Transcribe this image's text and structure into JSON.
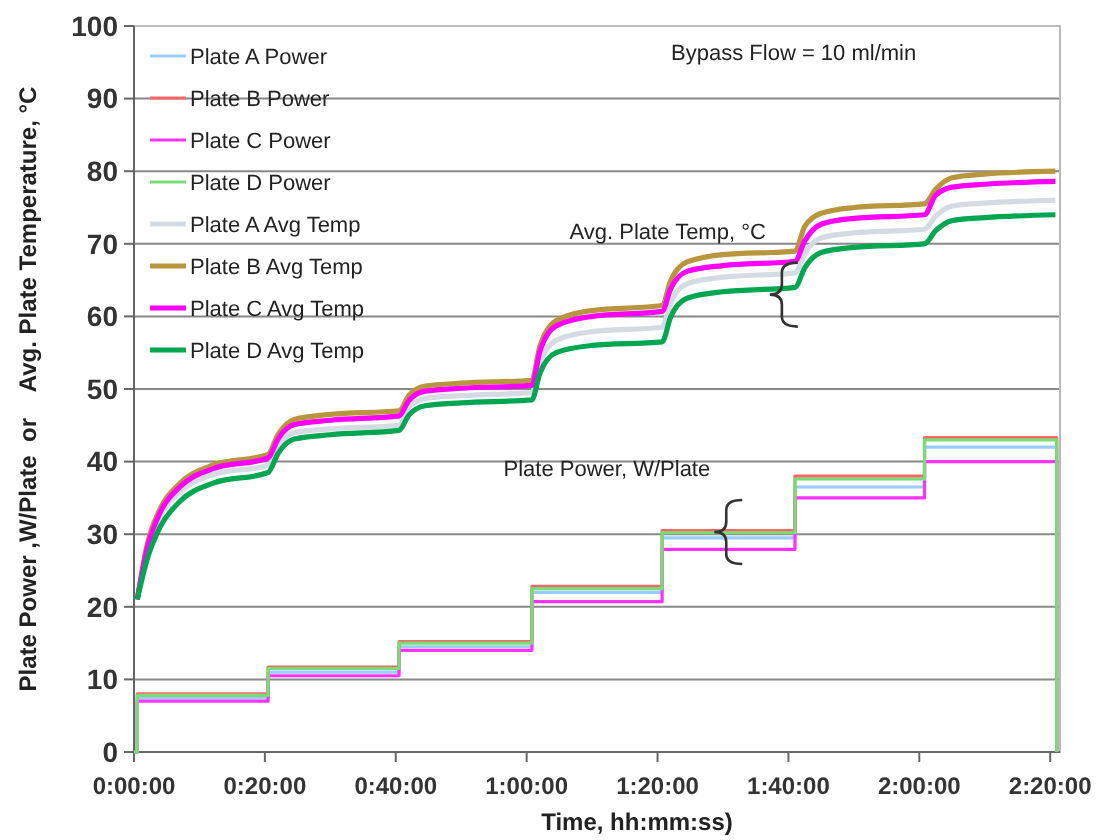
{
  "chart_data": {
    "type": "line",
    "xlabel": "Time, hh:mm:ss)",
    "ylabel": "Plate Power ,W/Plate  or    Avg. Plate Temperature, °C",
    "annotations": [
      "Bypass Flow = 10 ml/min",
      {
        "text": "Avg. Plate Temp, °C",
        "x": 99,
        "y": 63
      },
      {
        "text": "Plate Power,  W/Plate",
        "x": 90.5,
        "y": 30.3
      }
    ],
    "xlim": [
      0,
      141.5
    ],
    "ylim": [
      0,
      100
    ],
    "xticks": [
      {
        "value": 0,
        "label": "0:00:00"
      },
      {
        "value": 20,
        "label": "0:20:00"
      },
      {
        "value": 40,
        "label": "0:40:00"
      },
      {
        "value": 60,
        "label": "1:00:00"
      },
      {
        "value": 80,
        "label": "1:20:00"
      },
      {
        "value": 100,
        "label": "1:40:00"
      },
      {
        "value": 120,
        "label": "2:00:00"
      },
      {
        "value": 140,
        "label": "2:20:00"
      }
    ],
    "yticks": [
      0,
      10,
      20,
      30,
      40,
      50,
      60,
      70,
      80,
      90,
      100
    ],
    "grid": "y",
    "legend": "top left",
    "marker": "none",
    "line_style": "solid",
    "x": [
      0.5,
      2,
      4,
      7,
      12,
      20.5,
      22,
      24.5,
      30,
      40.5,
      42,
      44.5,
      50,
      60.8,
      62,
      64.5,
      70,
      80.7,
      82,
      84.5,
      90,
      101,
      102.5,
      105,
      110,
      120.8,
      122.5,
      125,
      130,
      140.8
    ],
    "series": [
      {
        "name": "Plate A Power",
        "type": "step",
        "color": "#99ccff",
        "x": [
          0,
          0.5,
          20.5,
          40.5,
          60.8,
          80.7,
          101,
          120.8,
          141
        ],
        "values": [
          0,
          7.5,
          11,
          14.5,
          22,
          29.5,
          36.5,
          42,
          0
        ]
      },
      {
        "name": "Plate B Power",
        "type": "step",
        "color": "#ff6666",
        "x": [
          0,
          0.5,
          20.5,
          40.5,
          60.8,
          80.7,
          101,
          120.8,
          141
        ],
        "values": [
          0,
          8,
          11.7,
          15.2,
          22.8,
          30.5,
          38,
          43.3,
          0
        ]
      },
      {
        "name": "Plate C Power",
        "type": "step",
        "color": "#ff33ff",
        "x": [
          0,
          0.5,
          20.5,
          40.5,
          60.8,
          80.7,
          101,
          120.8,
          141
        ],
        "values": [
          0,
          7,
          10.5,
          14,
          20.7,
          27.9,
          35,
          40,
          0
        ]
      },
      {
        "name": "Plate D Power",
        "type": "step",
        "color": "#77dd77",
        "x": [
          0,
          0.5,
          20.5,
          40.5,
          60.8,
          80.7,
          101,
          120.8,
          141
        ],
        "values": [
          0,
          7.8,
          11.5,
          15,
          22.5,
          30.2,
          37.6,
          43,
          0
        ]
      },
      {
        "name": "Plate A Avg Temp",
        "type": "line",
        "color": "#d5dbe3",
        "values": [
          21,
          27.5,
          32.5,
          35.8,
          38.2,
          39.5,
          42,
          44,
          44.5,
          45,
          47.5,
          48.7,
          49.1,
          49.5,
          53.5,
          56.7,
          57.9,
          58.5,
          61.9,
          64.5,
          65.4,
          66,
          68.7,
          70.8,
          71.5,
          72,
          73.8,
          75.2,
          75.6,
          76
        ]
      },
      {
        "name": "Plate B Avg Temp",
        "type": "line",
        "color": "#b8963e",
        "values": [
          21,
          28.5,
          33.5,
          37,
          39.5,
          41,
          43.7,
          45.8,
          46.5,
          47,
          49.1,
          50.4,
          50.8,
          51.2,
          55.8,
          59.4,
          60.8,
          61.5,
          64.9,
          67.5,
          68.5,
          69,
          72.4,
          74.2,
          75,
          75.5,
          77.5,
          79.1,
          79.6,
          80
        ]
      },
      {
        "name": "Plate C Avg Temp",
        "type": "line",
        "color": "#ff00ff",
        "values": [
          21,
          28,
          33,
          36.5,
          39,
          40.5,
          43.1,
          45.1,
          45.7,
          46.3,
          48.4,
          49.7,
          50.1,
          50.5,
          55.1,
          58.7,
          60,
          60.7,
          63.8,
          66.2,
          67,
          67.6,
          70.4,
          72.7,
          73.5,
          74,
          76.7,
          77.8,
          78.2,
          78.6
        ]
      },
      {
        "name": "Plate D Avg Temp",
        "type": "line",
        "color": "#00a650",
        "values": [
          21,
          26.5,
          31,
          34.5,
          37,
          38.5,
          41.1,
          43.1,
          43.7,
          44.3,
          46.4,
          47.7,
          48.1,
          48.5,
          52.1,
          55,
          56,
          56.5,
          59.9,
          62.5,
          63.4,
          64,
          66.7,
          68.8,
          69.5,
          70,
          71.8,
          73.2,
          73.6,
          74
        ]
      }
    ]
  }
}
